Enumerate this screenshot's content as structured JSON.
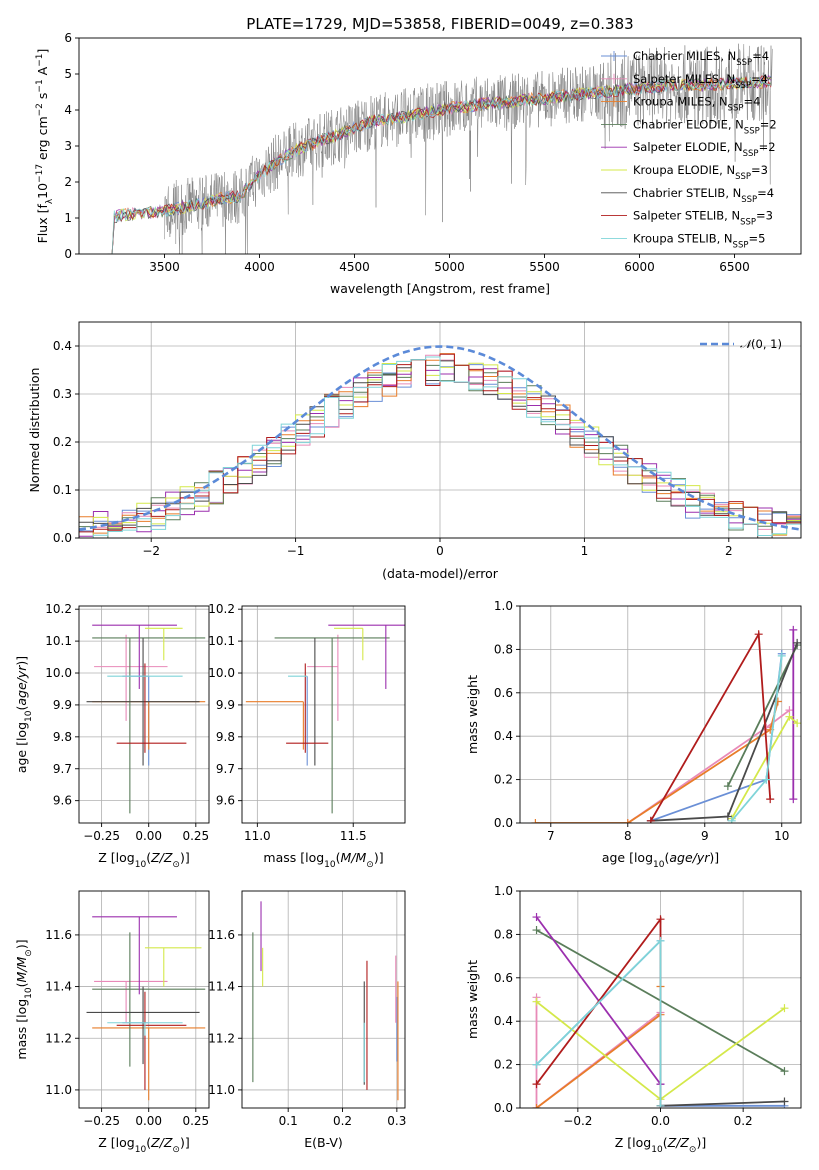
{
  "figure": {
    "title": "PLATE=1729, MJD=53858, FIBERID=0049, z=0.383"
  },
  "colors": {
    "Chabrier MILES": "#6a8fd6",
    "Salpeter MILES": "#e88ab8",
    "Kroupa MILES": "#e87d2a",
    "Chabrier ELODIE": "#5a7d5a",
    "Salpeter ELODIE": "#9b2fae",
    "Kroupa ELODIE": "#d4e84a",
    "Chabrier STELIB": "#4a4a4a",
    "Salpeter STELIB": "#b01c1c",
    "Kroupa STELIB": "#7fd4d8",
    "data": "#808080",
    "gauss": "#5b8ad8"
  },
  "chart_data": [
    {
      "id": "spectrum",
      "type": "line",
      "xlabel": "wavelength [Angstrom, rest frame]",
      "ylabel": "Flux [f$_\\lambda$10$^{-17}$ erg cm$^{-2}$ s$^{-1}$ A$^{-1}$]",
      "xlim": [
        3050,
        6850
      ],
      "ylim": [
        0,
        6
      ],
      "xticks": [
        3500,
        4000,
        4500,
        5000,
        5500,
        6000,
        6500
      ],
      "yticks": [
        0,
        1,
        2,
        3,
        4,
        5,
        6
      ],
      "legend_position": "top-right",
      "legend": [
        {
          "label": "Chabrier MILES, N",
          "sub": "SSP",
          "rest": "=4",
          "key": "Chabrier MILES",
          "marker": "plus"
        },
        {
          "label": "Salpeter MILES, N",
          "sub": "SSP",
          "rest": "=4",
          "key": "Salpeter MILES",
          "marker": "plus"
        },
        {
          "label": "Kroupa MILES, N",
          "sub": "SSP",
          "rest": "=4",
          "key": "Kroupa MILES",
          "marker": "plus"
        },
        {
          "label": "Chabrier ELODIE, N",
          "sub": "SSP",
          "rest": "=2",
          "key": "Chabrier ELODIE",
          "marker": "none"
        },
        {
          "label": "Salpeter ELODIE, N",
          "sub": "SSP",
          "rest": "=2",
          "key": "Salpeter ELODIE",
          "marker": "none"
        },
        {
          "label": "Kroupa ELODIE, N",
          "sub": "SSP",
          "rest": "=3",
          "key": "Kroupa ELODIE",
          "marker": "none"
        },
        {
          "label": "Chabrier STELIB, N",
          "sub": "SSP",
          "rest": "=4",
          "key": "Chabrier STELIB",
          "marker": "none"
        },
        {
          "label": "Salpeter STELIB, N",
          "sub": "SSP",
          "rest": "=3",
          "key": "Salpeter STELIB",
          "marker": "none"
        },
        {
          "label": "Kroupa STELIB, N",
          "sub": "SSP",
          "rest": "=5",
          "key": "Kroupa STELIB",
          "marker": "none"
        }
      ],
      "model_continuum": {
        "x": [
          3200,
          3300,
          3400,
          3500,
          3600,
          3700,
          3800,
          3900,
          4000,
          4100,
          4200,
          4300,
          4400,
          4500,
          4600,
          4700,
          4800,
          4900,
          5000,
          5100,
          5200,
          5300,
          5400,
          5500,
          5600,
          5700,
          5800,
          5900,
          6000,
          6100,
          6200,
          6300,
          6400,
          6500,
          6600,
          6700
        ],
        "y": [
          1.0,
          1.1,
          1.15,
          1.2,
          1.3,
          1.4,
          1.55,
          1.6,
          2.2,
          2.6,
          2.9,
          3.1,
          3.3,
          3.5,
          3.7,
          3.75,
          3.85,
          3.95,
          4.05,
          4.1,
          4.2,
          4.2,
          4.3,
          4.3,
          4.4,
          4.45,
          4.5,
          4.55,
          4.6,
          4.65,
          4.7,
          4.7,
          4.7,
          4.75,
          4.75,
          4.8
        ]
      },
      "observed_range": [
        3500,
        6700
      ]
    },
    {
      "id": "residuals",
      "type": "histogram",
      "xlabel": "(data-model)/error",
      "ylabel": "Normed distribution",
      "xlim": [
        -2.5,
        2.5
      ],
      "ylim": [
        0,
        0.45
      ],
      "xticks": [
        -2,
        -1,
        0,
        1,
        2
      ],
      "yticks": [
        0.0,
        0.1,
        0.2,
        0.3,
        0.4
      ],
      "legend": [
        {
          "label": "N(0, 1)",
          "key": "gauss"
        }
      ],
      "legend_position": "top-right",
      "bin_width": 0.1
    },
    {
      "id": "z-age",
      "type": "errorbar",
      "xlabel": "Z [log10(Z/Z⊙)]",
      "ylabel": "age [log10(age/yr)]",
      "xlim": [
        -0.37,
        0.32
      ],
      "ylim": [
        9.53,
        10.21
      ],
      "xticks": [
        -0.25,
        0.0,
        0.25
      ],
      "yticks": [
        9.6,
        9.7,
        9.8,
        9.9,
        10.0,
        10.1,
        10.2
      ],
      "points": [
        {
          "key": "Chabrier MILES",
          "x": 0.0,
          "xerr": [
            0.14,
            0.0
          ],
          "y": 9.99,
          "yerr": [
            0.28,
            0.0
          ]
        },
        {
          "key": "Salpeter MILES",
          "x": -0.12,
          "xerr": [
            0.17,
            0.22
          ],
          "y": 10.02,
          "yerr": [
            0.17,
            0.1
          ]
        },
        {
          "key": "Kroupa MILES",
          "x": 0.0,
          "xerr": [
            0.3,
            0.3
          ],
          "y": 9.91,
          "yerr": [
            0.15,
            0.0
          ]
        },
        {
          "key": "Chabrier ELODIE",
          "x": -0.1,
          "xerr": [
            0.2,
            0.4
          ],
          "y": 10.11,
          "yerr": [
            0.55,
            0.0
          ]
        },
        {
          "key": "Salpeter ELODIE",
          "x": -0.05,
          "xerr": [
            0.25,
            0.2
          ],
          "y": 10.15,
          "yerr": [
            0.2,
            0.0
          ]
        },
        {
          "key": "Kroupa ELODIE",
          "x": 0.08,
          "xerr": [
            0.1,
            0.1
          ],
          "y": 10.14,
          "yerr": [
            0.1,
            0.0
          ]
        },
        {
          "key": "Chabrier STELIB",
          "x": -0.03,
          "xerr": [
            0.3,
            0.3
          ],
          "y": 9.91,
          "yerr": [
            0.2,
            0.2
          ]
        },
        {
          "key": "Salpeter STELIB",
          "x": -0.02,
          "xerr": [
            0.15,
            0.22
          ],
          "y": 9.78,
          "yerr": [
            0.03,
            0.25
          ]
        },
        {
          "key": "Kroupa STELIB",
          "x": -0.02,
          "xerr": [
            0.2,
            0.2
          ],
          "y": 9.99,
          "yerr": [
            0.0,
            0.0
          ]
        }
      ]
    },
    {
      "id": "mass-age",
      "type": "errorbar",
      "xlabel": "mass [log10(M/M⊙)]",
      "ylabel": "",
      "xlim": [
        10.92,
        11.77
      ],
      "ylim": [
        9.53,
        10.21
      ],
      "xticks": [
        11.0,
        11.5
      ],
      "yticks": [
        9.6,
        9.7,
        9.8,
        9.9,
        10.0,
        10.1,
        10.2
      ],
      "points": [
        {
          "key": "Chabrier MILES",
          "x": 11.26,
          "xerr": [
            0.0,
            0.0
          ],
          "y": 9.99,
          "yerr": [
            0.28,
            0.0
          ]
        },
        {
          "key": "Salpeter MILES",
          "x": 11.42,
          "xerr": [
            0.16,
            0.0
          ],
          "y": 10.02,
          "yerr": [
            0.17,
            0.1
          ]
        },
        {
          "key": "Kroupa MILES",
          "x": 11.24,
          "xerr": [
            0.3,
            0.0
          ],
          "y": 9.91,
          "yerr": [
            0.15,
            0.0
          ]
        },
        {
          "key": "Chabrier ELODIE",
          "x": 11.39,
          "xerr": [
            0.3,
            0.3
          ],
          "y": 10.11,
          "yerr": [
            0.55,
            0.0
          ]
        },
        {
          "key": "Salpeter ELODIE",
          "x": 11.67,
          "xerr": [
            0.3,
            0.1
          ],
          "y": 10.15,
          "yerr": [
            0.2,
            0.0
          ]
        },
        {
          "key": "Kroupa ELODIE",
          "x": 11.55,
          "xerr": [
            0.15,
            0.0
          ],
          "y": 10.14,
          "yerr": [
            0.1,
            0.0
          ]
        },
        {
          "key": "Chabrier STELIB",
          "x": 11.3,
          "xerr": [
            0.0,
            0.0
          ],
          "y": 9.91,
          "yerr": [
            0.2,
            0.2
          ]
        },
        {
          "key": "Salpeter STELIB",
          "x": 11.25,
          "xerr": [
            0.1,
            0.12
          ],
          "y": 9.78,
          "yerr": [
            0.03,
            0.25
          ]
        },
        {
          "key": "Kroupa STELIB",
          "x": 11.26,
          "xerr": [
            0.1,
            0.0
          ],
          "y": 9.99,
          "yerr": [
            0.0,
            0.0
          ]
        }
      ]
    },
    {
      "id": "age-weight",
      "type": "line",
      "xlabel": "age [log10(age/yr)]",
      "ylabel": "mass weight",
      "xlim": [
        6.6,
        10.25
      ],
      "ylim": [
        0,
        1.0
      ],
      "xticks": [
        7,
        8,
        9,
        10
      ],
      "yticks": [
        0.0,
        0.2,
        0.4,
        0.6,
        0.8,
        1.0
      ],
      "series": [
        {
          "key": "Chabrier MILES",
          "x": [
            8.3,
            9.8,
            10.0
          ],
          "y": [
            0.01,
            0.2,
            0.78
          ]
        },
        {
          "key": "Salpeter MILES",
          "x": [
            8.0,
            9.8,
            10.1
          ],
          "y": [
            0.0,
            0.44,
            0.52
          ]
        },
        {
          "key": "Kroupa MILES",
          "x": [
            6.8,
            8.0,
            9.85,
            9.95
          ],
          "y": [
            0.0,
            0.0,
            0.43,
            0.56
          ]
        },
        {
          "key": "Chabrier ELODIE",
          "x": [
            9.3,
            10.2
          ],
          "y": [
            0.17,
            0.82
          ]
        },
        {
          "key": "Salpeter ELODIE",
          "x": [
            10.15,
            10.15
          ],
          "y": [
            0.11,
            0.89
          ]
        },
        {
          "key": "Kroupa ELODIE",
          "x": [
            9.35,
            10.1,
            10.2
          ],
          "y": [
            0.02,
            0.49,
            0.46
          ]
        },
        {
          "key": "Chabrier STELIB",
          "x": [
            8.3,
            9.3,
            10.2
          ],
          "y": [
            0.01,
            0.03,
            0.83
          ]
        },
        {
          "key": "Salpeter STELIB",
          "x": [
            8.3,
            9.7,
            9.85
          ],
          "y": [
            0.01,
            0.87,
            0.11
          ]
        },
        {
          "key": "Kroupa STELIB",
          "x": [
            9.35,
            9.8,
            10.0
          ],
          "y": [
            0.01,
            0.2,
            0.77
          ]
        }
      ]
    },
    {
      "id": "z-mass",
      "type": "errorbar",
      "xlabel": "Z [log10(Z/Z⊙)]",
      "ylabel": "mass [log10(M/M⊙)]",
      "xlim": [
        -0.37,
        0.32
      ],
      "ylim": [
        10.93,
        11.77
      ],
      "xticks": [
        -0.25,
        0.0,
        0.25
      ],
      "yticks": [
        11.0,
        11.2,
        11.4,
        11.6
      ],
      "points": [
        {
          "key": "Chabrier MILES",
          "x": 0.0,
          "xerr": [
            0.14,
            0.0
          ],
          "y": 11.26,
          "yerr": [
            0.0,
            0.0
          ]
        },
        {
          "key": "Salpeter MILES",
          "x": -0.12,
          "xerr": [
            0.17,
            0.22
          ],
          "y": 11.42,
          "yerr": [
            0.16,
            0.0
          ]
        },
        {
          "key": "Kroupa MILES",
          "x": 0.0,
          "xerr": [
            0.3,
            0.3
          ],
          "y": 11.24,
          "yerr": [
            0.28,
            0.0
          ]
        },
        {
          "key": "Chabrier ELODIE",
          "x": -0.1,
          "xerr": [
            0.2,
            0.4
          ],
          "y": 11.39,
          "yerr": [
            0.3,
            0.22
          ]
        },
        {
          "key": "Salpeter ELODIE",
          "x": -0.05,
          "xerr": [
            0.25,
            0.2
          ],
          "y": 11.67,
          "yerr": [
            0.3,
            0.0
          ]
        },
        {
          "key": "Kroupa ELODIE",
          "x": 0.08,
          "xerr": [
            0.1,
            0.2
          ],
          "y": 11.55,
          "yerr": [
            0.15,
            0.0
          ]
        },
        {
          "key": "Chabrier STELIB",
          "x": -0.03,
          "xerr": [
            0.3,
            0.3
          ],
          "y": 11.3,
          "yerr": [
            0.2,
            0.1
          ]
        },
        {
          "key": "Salpeter STELIB",
          "x": -0.02,
          "xerr": [
            0.15,
            0.22
          ],
          "y": 11.25,
          "yerr": [
            0.25,
            0.13
          ]
        },
        {
          "key": "Kroupa STELIB",
          "x": -0.02,
          "xerr": [
            0.2,
            0.2
          ],
          "y": 11.26,
          "yerr": [
            0.05,
            0.0
          ]
        }
      ]
    },
    {
      "id": "ebv-mass",
      "type": "errorbar",
      "xlabel": "E(B-V)",
      "ylabel": "",
      "xlim": [
        0.015,
        0.315
      ],
      "ylim": [
        10.93,
        11.77
      ],
      "xticks": [
        0.1,
        0.2,
        0.3
      ],
      "yticks": [
        11.0,
        11.2,
        11.4,
        11.6
      ],
      "points": [
        {
          "key": "Chabrier MILES",
          "x": 0.3,
          "xerr": [
            0.0,
            0.0
          ],
          "y": 11.26,
          "yerr": [
            0.15,
            0.1
          ]
        },
        {
          "key": "Salpeter MILES",
          "x": 0.298,
          "xerr": [
            0.0,
            0.0
          ],
          "y": 11.42,
          "yerr": [
            0.16,
            0.1
          ]
        },
        {
          "key": "Kroupa MILES",
          "x": 0.302,
          "xerr": [
            0.0,
            0.0
          ],
          "y": 11.24,
          "yerr": [
            0.28,
            0.18
          ]
        },
        {
          "key": "Chabrier ELODIE",
          "x": 0.035,
          "xerr": [
            0.0,
            0.0
          ],
          "y": 11.39,
          "yerr": [
            0.36,
            0.22
          ]
        },
        {
          "key": "Salpeter ELODIE",
          "x": 0.05,
          "xerr": [
            0.0,
            0.0
          ],
          "y": 11.67,
          "yerr": [
            0.21,
            0.06
          ]
        },
        {
          "key": "Kroupa ELODIE",
          "x": 0.053,
          "xerr": [
            0.0,
            0.0
          ],
          "y": 11.55,
          "yerr": [
            0.15,
            0.0
          ]
        },
        {
          "key": "Chabrier STELIB",
          "x": 0.24,
          "xerr": [
            0.0,
            0.0
          ],
          "y": 11.3,
          "yerr": [
            0.28,
            0.12
          ]
        },
        {
          "key": "Salpeter STELIB",
          "x": 0.245,
          "xerr": [
            0.0,
            0.0
          ],
          "y": 11.25,
          "yerr": [
            0.25,
            0.25
          ]
        },
        {
          "key": "Kroupa STELIB",
          "x": 0.24,
          "xerr": [
            0.0,
            0.0
          ],
          "y": 11.26,
          "yerr": [
            0.23,
            0.0
          ]
        }
      ]
    },
    {
      "id": "z-weight",
      "type": "line",
      "xlabel": "Z [log10(Z/Z⊙)]",
      "ylabel": "mass weight",
      "xlim": [
        -0.34,
        0.34
      ],
      "ylim": [
        0,
        1.0
      ],
      "xticks": [
        -0.2,
        0.0,
        0.2
      ],
      "yticks": [
        0.0,
        0.2,
        0.4,
        0.6,
        0.8,
        1.0
      ],
      "series": [
        {
          "key": "Chabrier MILES",
          "x": [
            -0.3,
            0.0,
            0.0,
            0.3
          ],
          "y": [
            0.2,
            0.77,
            0.01,
            0.01
          ]
        },
        {
          "key": "Salpeter MILES",
          "x": [
            -0.3,
            -0.3,
            0.0
          ],
          "y": [
            0.51,
            0.0,
            0.44
          ]
        },
        {
          "key": "Kroupa MILES",
          "x": [
            -0.3,
            0.0,
            0.0
          ],
          "y": [
            0.0,
            0.43,
            0.56
          ]
        },
        {
          "key": "Chabrier ELODIE",
          "x": [
            -0.3,
            0.3
          ],
          "y": [
            0.82,
            0.17
          ]
        },
        {
          "key": "Salpeter ELODIE",
          "x": [
            -0.3,
            0.0,
            0.0
          ],
          "y": [
            0.88,
            0.11,
            0.11
          ]
        },
        {
          "key": "Kroupa ELODIE",
          "x": [
            -0.3,
            0.0,
            0.3
          ],
          "y": [
            0.49,
            0.04,
            0.46
          ]
        },
        {
          "key": "Chabrier STELIB",
          "x": [
            0.0,
            0.3
          ],
          "y": [
            0.01,
            0.03
          ]
        },
        {
          "key": "Salpeter STELIB",
          "x": [
            -0.3,
            0.0,
            0.0
          ],
          "y": [
            0.11,
            0.87,
            0.01
          ]
        },
        {
          "key": "Kroupa STELIB",
          "x": [
            -0.3,
            0.0,
            0.0
          ],
          "y": [
            0.2,
            0.77,
            0.01
          ]
        }
      ]
    }
  ]
}
